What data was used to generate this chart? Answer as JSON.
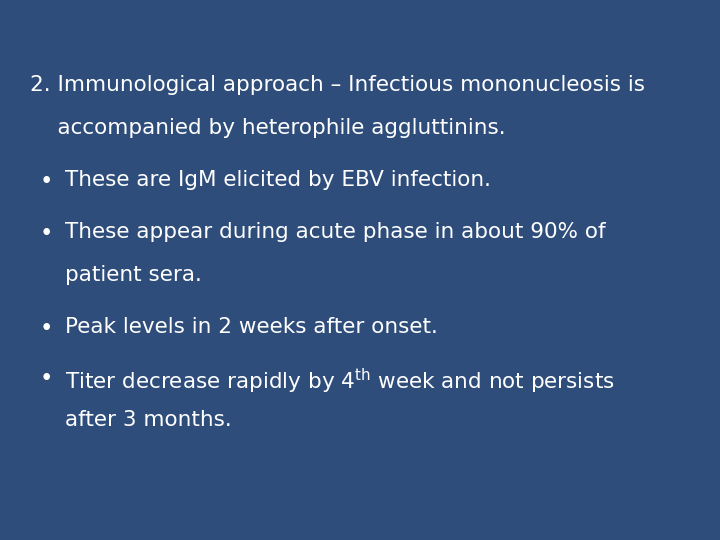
{
  "background_color": "#2E4D7B",
  "text_color": "#FFFFFF",
  "fig_width": 7.2,
  "fig_height": 5.4,
  "dpi": 100,
  "heading_line1": "2. Immunological approach – Infectious mononucleosis is",
  "heading_line2": "    accompanied by heterophile aggluttinins.",
  "bullet1_line1": "These are IgM elicited by EBV infection.",
  "bullet2_line1": "These appear during acute phase in about 90% of",
  "bullet2_line2": "patient sera.",
  "bullet3_line1": "Peak levels in 2 weeks after onset.",
  "bullet4_line1_pre": "Titer decrease rapidly by 4",
  "bullet4_sup": "th",
  "bullet4_line1_post": " week and not persists",
  "bullet4_line2": "after 3 months.",
  "heading_fontsize": 15.5,
  "bullet_fontsize": 15.5,
  "font_family": "DejaVu Sans"
}
